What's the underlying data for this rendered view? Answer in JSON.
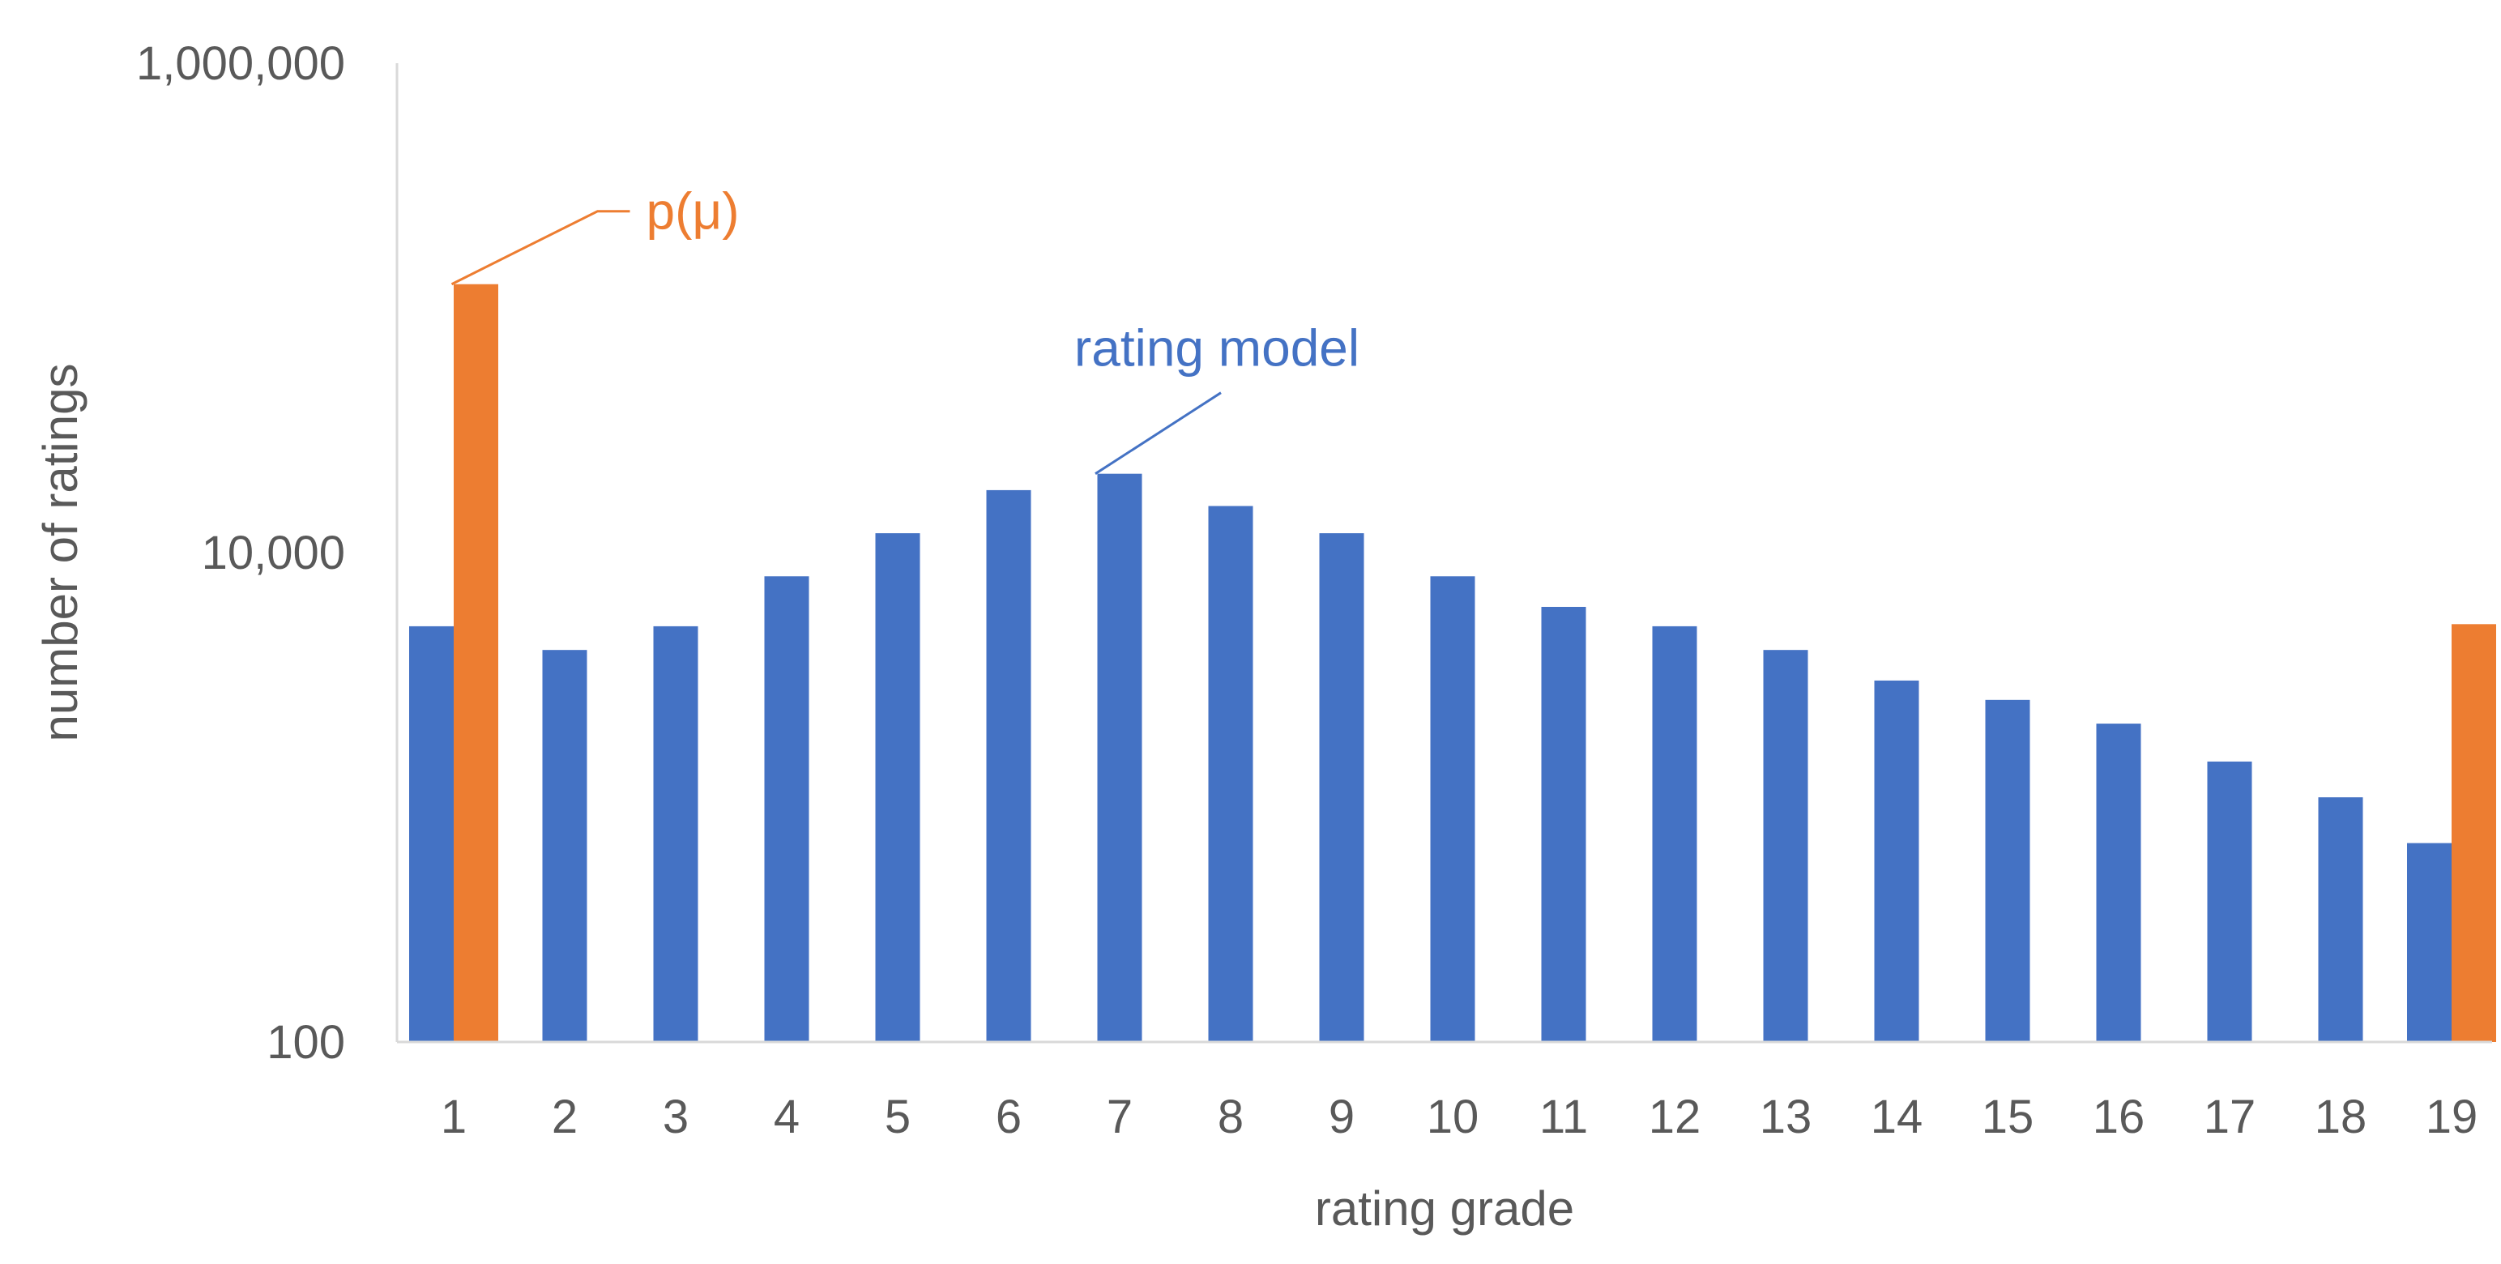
{
  "chart_data": {
    "type": "bar",
    "xlabel": "rating grade",
    "ylabel": "number of ratings",
    "yscale": "log",
    "ylim": [
      100,
      1000000
    ],
    "y_ticks": [
      {
        "value": 100,
        "label": "100"
      },
      {
        "value": 10000,
        "label": "10,000"
      },
      {
        "value": 1000000,
        "label": "1,000,000"
      }
    ],
    "grid": false,
    "legend": "none",
    "categories": [
      "1",
      "2",
      "3",
      "4",
      "5",
      "6",
      "7",
      "8",
      "9",
      "10",
      "11",
      "12",
      "13",
      "14",
      "15",
      "16",
      "17",
      "18",
      "19"
    ],
    "series": [
      {
        "name": "rating model",
        "color": "#4472C4",
        "values": [
          5000,
          4000,
          5000,
          8000,
          12000,
          18000,
          21000,
          15500,
          12000,
          8000,
          6000,
          5000,
          4000,
          3000,
          2500,
          2000,
          1400,
          1000,
          650
        ]
      },
      {
        "name": "p(μ)",
        "color": "#ED7D31",
        "values": [
          125000,
          null,
          null,
          null,
          null,
          null,
          null,
          null,
          null,
          null,
          null,
          null,
          null,
          null,
          null,
          null,
          null,
          null,
          5100
        ]
      }
    ],
    "annotations": [
      {
        "text": "p(μ)",
        "series": "p(μ)",
        "category": "1",
        "color": "#ED7D31"
      },
      {
        "text": "rating model",
        "series": "rating model",
        "category": "7",
        "color": "#4472C4"
      }
    ]
  }
}
